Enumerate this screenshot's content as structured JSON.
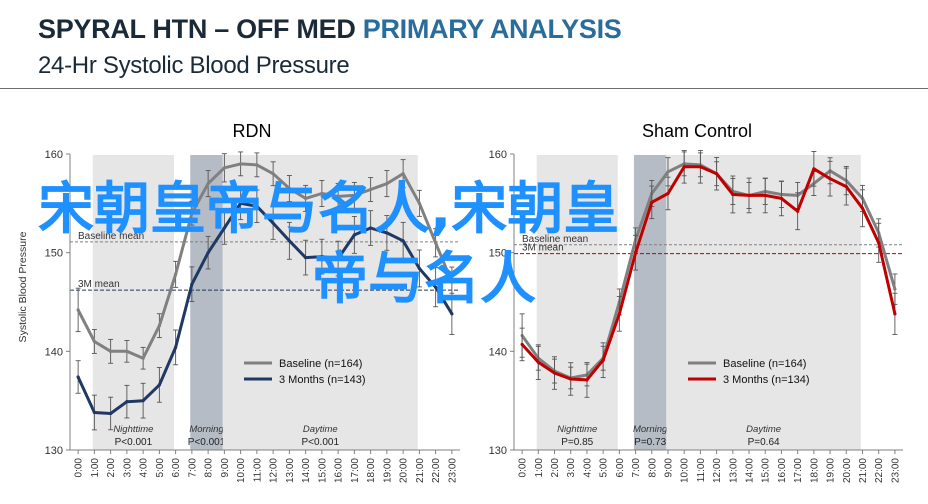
{
  "slide": {
    "title_prefix": "SPYRAL HTN – OFF MED",
    "title_accent": "PRIMARY ANALYSIS",
    "subtitle": "24-Hr Systolic Blood Pressure",
    "accent_color": "#2a6d9a"
  },
  "overlay": {
    "line1": "宋朝皇帝与名人,宋朝皇",
    "line2": "帝与名人",
    "color": "#1e90ff"
  },
  "chart_data": [
    {
      "type": "line",
      "title": "RDN",
      "ylabel": "Systolic Blood Pressure",
      "ylim": [
        130,
        160
      ],
      "yticks": [
        130,
        140,
        150,
        160
      ],
      "x": [
        "0:00",
        "1:00",
        "2:00",
        "3:00",
        "4:00",
        "5:00",
        "6:00",
        "7:00",
        "8:00",
        "9:00",
        "10:00",
        "11:00",
        "12:00",
        "13:00",
        "14:00",
        "15:00",
        "16:00",
        "17:00",
        "18:00",
        "19:00",
        "20:00",
        "21:00",
        "22:00",
        "23:00"
      ],
      "grid": false,
      "legend_position": "bottom-right",
      "series": [
        {
          "name": "Baseline (n=164)",
          "color": "#808080",
          "values": [
            144.2,
            141.0,
            140.0,
            140.0,
            139.3,
            142.6,
            147.8,
            154.0,
            157.0,
            158.6,
            159.0,
            158.9,
            158.0,
            156.5,
            155.5,
            156.0,
            155.7,
            155.8,
            156.4,
            157.0,
            158.0,
            155.0,
            151.0,
            147.0
          ]
        },
        {
          "name": "3 Months (n=143)",
          "color": "#1f3864",
          "values": [
            137.4,
            133.8,
            133.7,
            134.9,
            135.0,
            136.6,
            140.4,
            146.8,
            150.0,
            152.5,
            155.0,
            154.7,
            153.0,
            151.2,
            149.5,
            149.6,
            149.4,
            151.8,
            152.5,
            152.0,
            151.2,
            148.4,
            146.5,
            143.8
          ]
        }
      ],
      "reference_lines": [
        {
          "label": "Baseline mean",
          "value": 151.1,
          "color": "#808080"
        },
        {
          "label": "3M mean",
          "value": 146.2,
          "color": "#1f3864"
        }
      ],
      "periods": [
        {
          "label": "Nighttime",
          "p_text": "P<0.001",
          "from": "1:00",
          "to": "6:00"
        },
        {
          "label": "Morning",
          "p_text": "P<0.001",
          "from": "7:00",
          "to": "9:00"
        },
        {
          "label": "Daytime",
          "p_text": "P<0.001",
          "from": "9:00",
          "to": "21:00"
        }
      ]
    },
    {
      "type": "line",
      "title": "Sham Control",
      "ylabel": "",
      "ylim": [
        130,
        160
      ],
      "yticks": [
        130,
        140,
        150,
        160
      ],
      "x": [
        "0:00",
        "1:00",
        "2:00",
        "3:00",
        "4:00",
        "5:00",
        "6:00",
        "7:00",
        "8:00",
        "9:00",
        "10:00",
        "11:00",
        "12:00",
        "13:00",
        "14:00",
        "15:00",
        "16:00",
        "17:00",
        "18:00",
        "19:00",
        "20:00",
        "21:00",
        "22:00",
        "23:00"
      ],
      "grid": false,
      "legend_position": "bottom-right",
      "series": [
        {
          "name": "Baseline (n=164)",
          "color": "#808080",
          "values": [
            141.6,
            139.3,
            138.0,
            137.3,
            137.6,
            139.3,
            145.0,
            151.3,
            156.0,
            158.2,
            159.0,
            158.9,
            158.0,
            156.2,
            155.8,
            156.2,
            155.9,
            155.8,
            157.0,
            158.3,
            157.3,
            155.5,
            152.0,
            146.3
          ]
        },
        {
          "name": "3 Months (n=134)",
          "color": "#c00000",
          "values": [
            140.7,
            138.9,
            137.8,
            137.2,
            137.1,
            139.1,
            143.8,
            150.0,
            155.1,
            156.0,
            158.7,
            158.7,
            158.0,
            155.9,
            155.8,
            155.8,
            155.5,
            154.2,
            158.5,
            157.5,
            156.7,
            154.5,
            151.0,
            143.8
          ]
        }
      ],
      "reference_lines": [
        {
          "label": "Baseline mean",
          "value": 150.8,
          "color": "#808080"
        },
        {
          "label": "3M mean",
          "value": 149.9,
          "color": "#c00000"
        }
      ],
      "periods": [
        {
          "label": "Nighttime",
          "p_text": "P=0.85",
          "from": "1:00",
          "to": "6:00"
        },
        {
          "label": "Morning",
          "p_text": "P=0.73",
          "from": "7:00",
          "to": "9:00"
        },
        {
          "label": "Daytime",
          "p_text": "P=0.64",
          "from": "9:00",
          "to": "21:00"
        }
      ]
    }
  ]
}
